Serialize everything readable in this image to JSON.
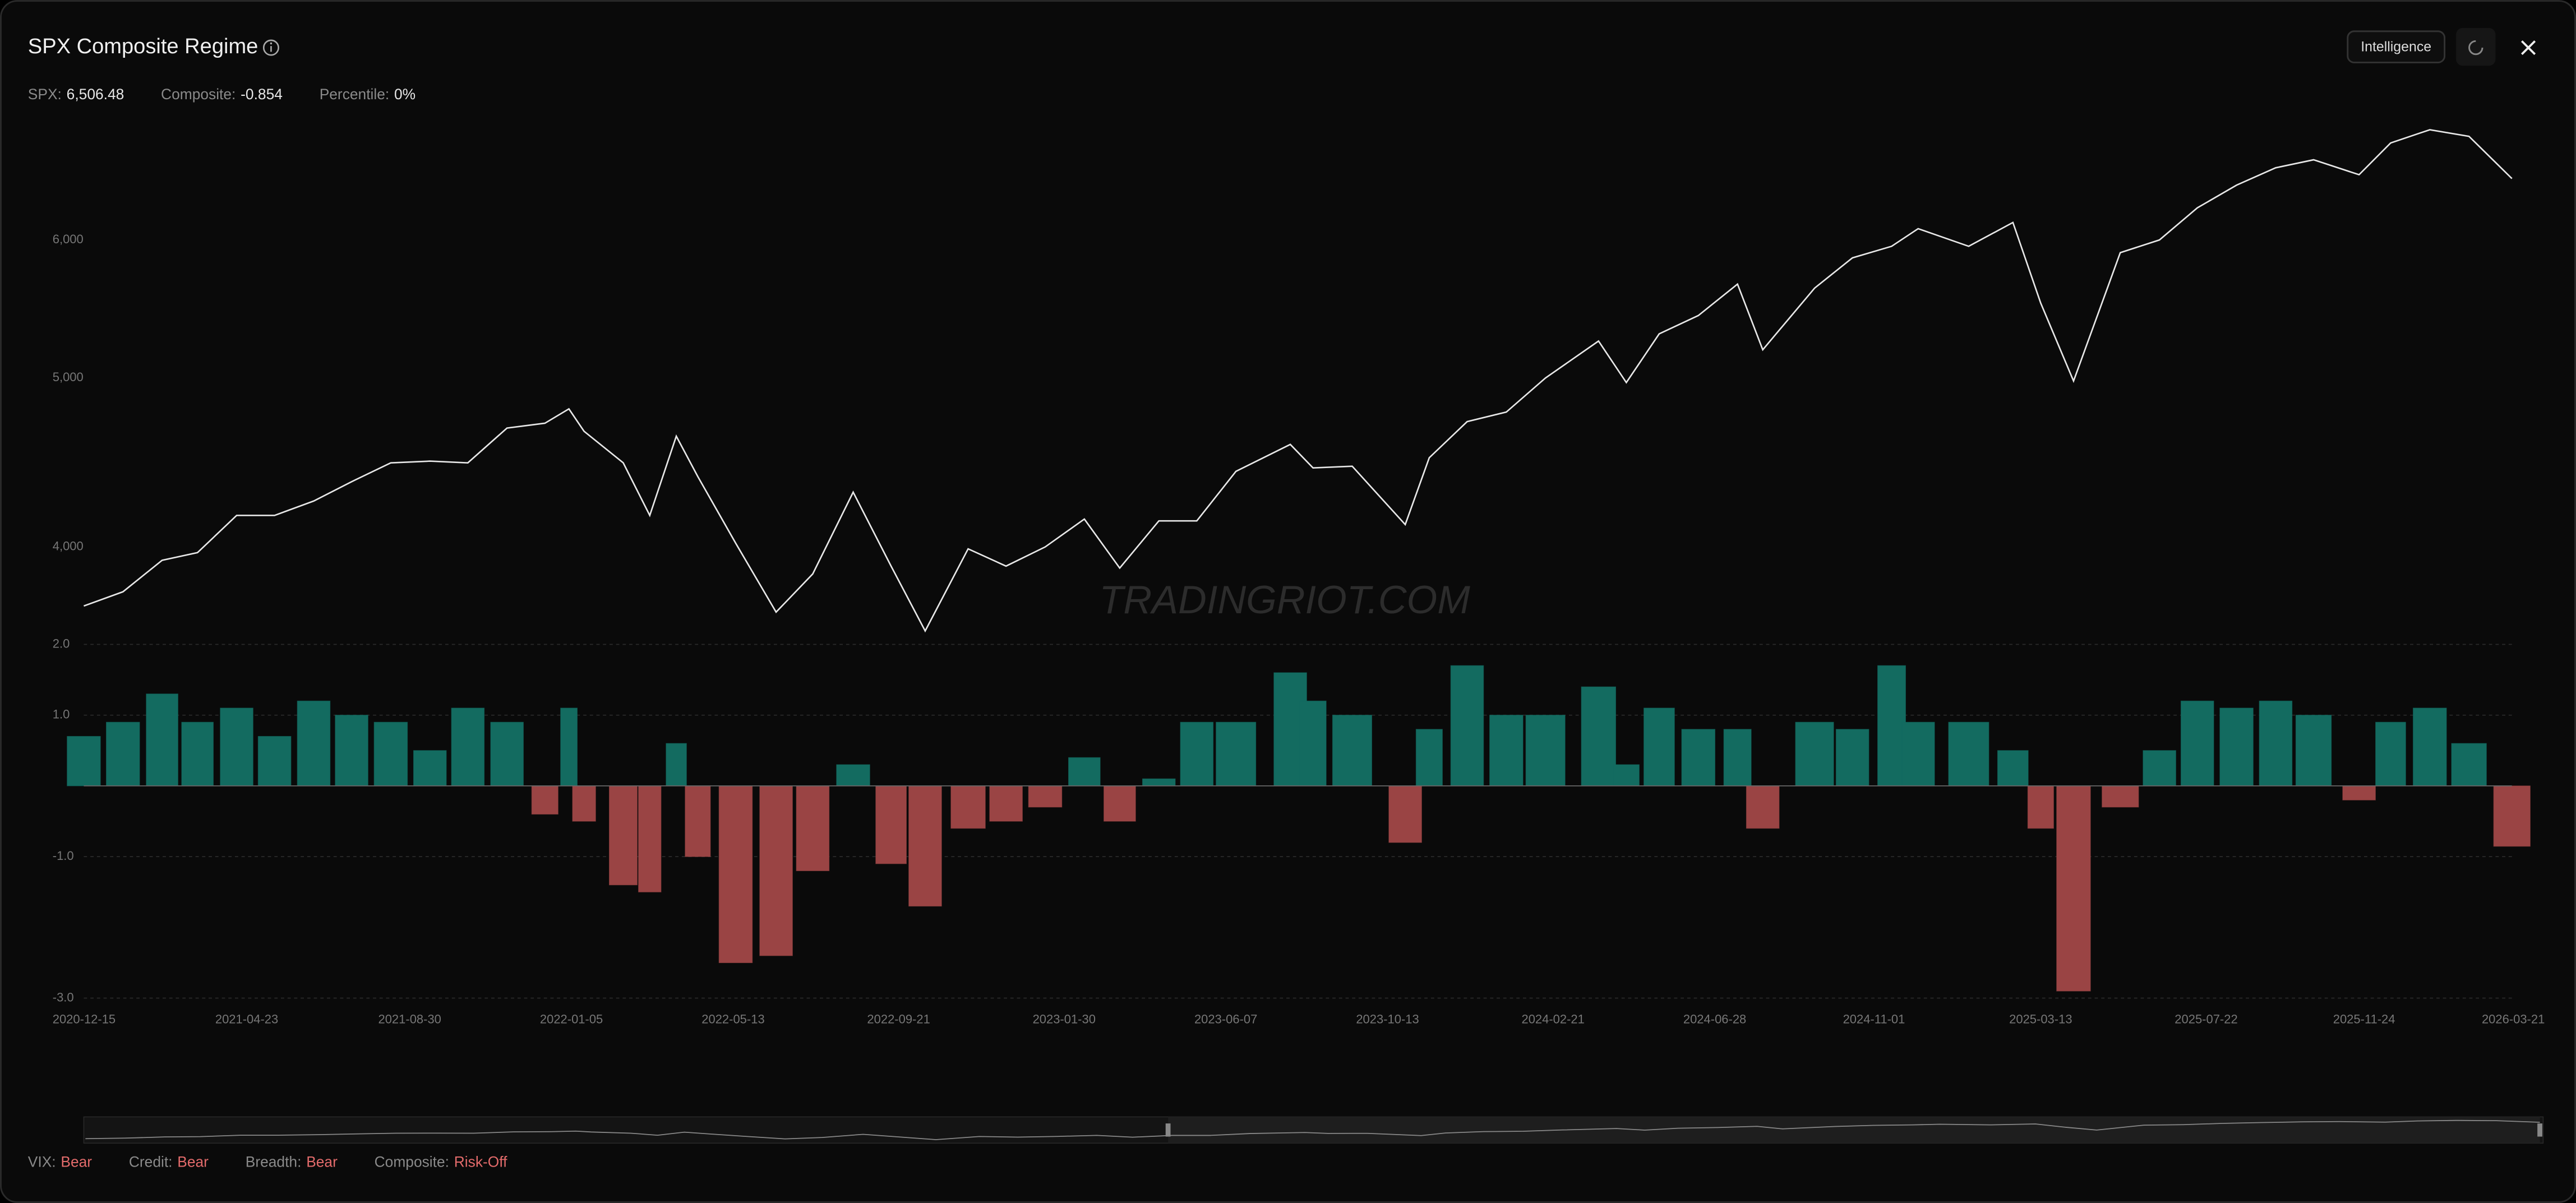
{
  "header": {
    "title": "SPX Composite Regime",
    "stats": [
      {
        "label": "SPX:",
        "value": "6,506.48"
      },
      {
        "label": "Composite:",
        "value": "-0.854"
      },
      {
        "label": "Percentile:",
        "value": "0%"
      }
    ],
    "button": "Intelligence"
  },
  "watermark": "TRADINGRIOT.COM",
  "footer": [
    {
      "label": "VIX:",
      "value": "Bear"
    },
    {
      "label": "Credit:",
      "value": "Bear"
    },
    {
      "label": "Breadth:",
      "value": "Bear"
    },
    {
      "label": "Composite:",
      "value": "Risk-Off"
    }
  ],
  "chart_data": [
    {
      "type": "line",
      "yscale": "log",
      "color": "#e8e8e8",
      "grid": false,
      "xlim": [
        "2020-12-15",
        "2026-03-21"
      ],
      "ylim": [
        3550,
        7000
      ],
      "yticks": [
        {
          "value": 4000,
          "label": "4,000"
        },
        {
          "value": 5000,
          "label": "5,000"
        },
        {
          "value": 6000,
          "label": "6,000"
        }
      ],
      "x": [
        "2020-12-15",
        "2021-01-15",
        "2021-02-15",
        "2021-03-15",
        "2021-04-15",
        "2021-05-15",
        "2021-06-15",
        "2021-07-15",
        "2021-08-15",
        "2021-09-15",
        "2021-10-15",
        "2021-11-15",
        "2021-12-15",
        "2022-01-03",
        "2022-01-15",
        "2022-02-15",
        "2022-03-08",
        "2022-03-29",
        "2022-04-15",
        "2022-05-15",
        "2022-06-16",
        "2022-07-15",
        "2022-08-16",
        "2022-09-15",
        "2022-10-12",
        "2022-11-15",
        "2022-12-15",
        "2023-01-15",
        "2023-02-15",
        "2023-03-15",
        "2023-04-15",
        "2023-05-15",
        "2023-06-15",
        "2023-07-28",
        "2023-08-15",
        "2023-09-15",
        "2023-10-27",
        "2023-11-15",
        "2023-12-15",
        "2024-01-15",
        "2024-02-15",
        "2024-03-28",
        "2024-04-19",
        "2024-05-15",
        "2024-06-15",
        "2024-07-16",
        "2024-08-05",
        "2024-09-15",
        "2024-10-15",
        "2024-11-15",
        "2024-12-06",
        "2025-01-15",
        "2025-02-19",
        "2025-03-13",
        "2025-04-08",
        "2025-05-15",
        "2025-06-15",
        "2025-07-15",
        "2025-08-15",
        "2025-09-15",
        "2025-10-15",
        "2025-11-20",
        "2025-12-15",
        "2026-01-15",
        "2026-02-15",
        "2026-03-21"
      ],
      "series": [
        {
          "name": "SPX",
          "values": [
            3700,
            3770,
            3930,
            3970,
            4170,
            4170,
            4250,
            4360,
            4470,
            4480,
            4470,
            4680,
            4710,
            4800,
            4660,
            4470,
            4170,
            4630,
            4390,
            4020,
            3670,
            3860,
            4300,
            3900,
            3580,
            3990,
            3900,
            4000,
            4150,
            3890,
            4140,
            4140,
            4420,
            4580,
            4440,
            4450,
            4120,
            4500,
            4720,
            4780,
            5000,
            5250,
            4970,
            5300,
            5430,
            5660,
            5190,
            5630,
            5860,
            5950,
            6090,
            5950,
            6140,
            5520,
            4980,
            5900,
            6000,
            6260,
            6450,
            6600,
            6670,
            6540,
            6820,
            6940,
            6880,
            6506.48
          ]
        }
      ]
    },
    {
      "type": "bar",
      "grid": true,
      "xlim": [
        "2020-12-15",
        "2026-03-21"
      ],
      "ylim": [
        -3.1,
        2.1
      ],
      "yticks": [
        {
          "value": -3,
          "label": "-3.0"
        },
        {
          "value": -1,
          "label": "-1.0"
        },
        {
          "value": 1,
          "label": "1.0"
        },
        {
          "value": 2,
          "label": "2.0"
        }
      ],
      "xticks": [
        "2020-12-15",
        "2021-04-23",
        "2021-08-30",
        "2022-01-05",
        "2022-05-13",
        "2022-09-21",
        "2023-01-30",
        "2023-06-07",
        "2023-10-13",
        "2024-02-21",
        "2024-06-28",
        "2024-11-01",
        "2025-03-13",
        "2025-07-22",
        "2025-11-24",
        "2026-03-21"
      ],
      "x": [
        "2020-12-15",
        "2021-01-15",
        "2021-02-15",
        "2021-03-15",
        "2021-04-15",
        "2021-05-15",
        "2021-06-15",
        "2021-07-15",
        "2021-08-15",
        "2021-09-15",
        "2021-10-15",
        "2021-11-15",
        "2021-12-15",
        "2022-01-03",
        "2022-01-15",
        "2022-02-15",
        "2022-03-08",
        "2022-03-29",
        "2022-04-15",
        "2022-05-15",
        "2022-06-16",
        "2022-07-15",
        "2022-08-16",
        "2022-09-15",
        "2022-10-12",
        "2022-11-15",
        "2022-12-15",
        "2023-01-15",
        "2023-02-15",
        "2023-03-15",
        "2023-04-15",
        "2023-05-15",
        "2023-06-15",
        "2023-07-28",
        "2023-08-15",
        "2023-09-15",
        "2023-10-27",
        "2023-11-15",
        "2023-12-15",
        "2024-01-15",
        "2024-02-15",
        "2024-03-28",
        "2024-04-19",
        "2024-05-15",
        "2024-06-15",
        "2024-07-16",
        "2024-08-05",
        "2024-09-15",
        "2024-10-15",
        "2024-11-15",
        "2024-12-06",
        "2025-01-15",
        "2025-02-19",
        "2025-03-13",
        "2025-04-08",
        "2025-05-15",
        "2025-06-15",
        "2025-07-15",
        "2025-08-15",
        "2025-09-15",
        "2025-10-15",
        "2025-11-20",
        "2025-12-15",
        "2026-01-15",
        "2026-02-15",
        "2026-03-21"
      ],
      "series": [
        {
          "name": "Composite",
          "color": "#136b60",
          "negative_color": "#9a4444",
          "values": [
            0.7,
            0.9,
            1.3,
            0.9,
            1.1,
            0.7,
            1.2,
            1.0,
            0.9,
            0.5,
            1.1,
            0.9,
            -0.4,
            1.1,
            -0.5,
            -1.4,
            -1.5,
            0.6,
            -1.0,
            -2.5,
            -2.4,
            -1.2,
            0.3,
            -1.1,
            -1.7,
            -0.6,
            -0.5,
            -0.3,
            0.4,
            -0.5,
            0.1,
            0.9,
            0.9,
            1.6,
            1.2,
            1.0,
            -0.8,
            0.8,
            1.7,
            1.0,
            1.0,
            1.4,
            0.3,
            1.1,
            0.8,
            0.8,
            -0.6,
            0.9,
            0.8,
            1.7,
            0.9,
            0.9,
            0.5,
            -0.6,
            -2.9,
            -0.3,
            0.5,
            1.2,
            1.1,
            1.2,
            1.0,
            -0.2,
            0.9,
            1.1,
            0.6,
            -0.854
          ]
        }
      ]
    }
  ]
}
